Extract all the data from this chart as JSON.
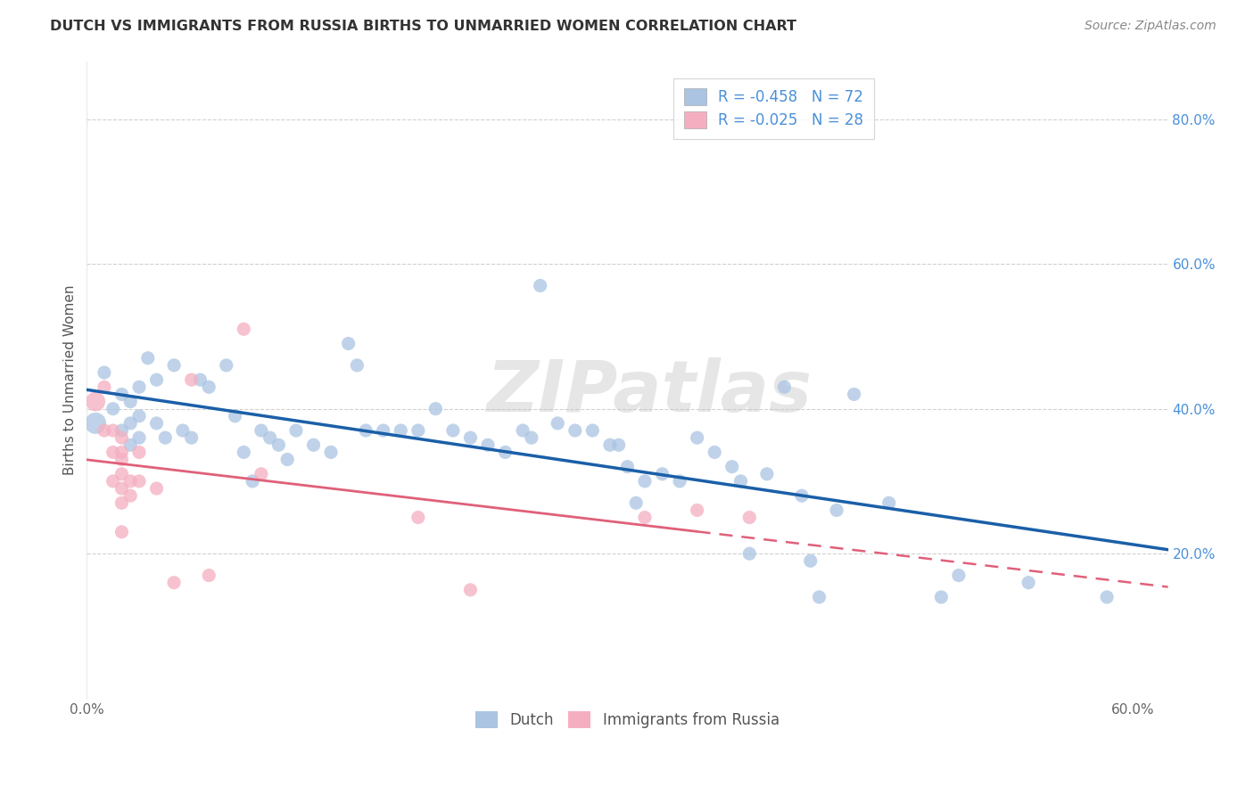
{
  "title": "DUTCH VS IMMIGRANTS FROM RUSSIA BIRTHS TO UNMARRIED WOMEN CORRELATION CHART",
  "source": "Source: ZipAtlas.com",
  "ylabel": "Births to Unmarried Women",
  "xlim": [
    0.0,
    0.62
  ],
  "ylim": [
    0.0,
    0.88
  ],
  "x_ticks": [
    0.0,
    0.1,
    0.2,
    0.3,
    0.4,
    0.5,
    0.6
  ],
  "y_ticks": [
    0.2,
    0.4,
    0.6,
    0.8
  ],
  "watermark": "ZIPatlas",
  "dutch_R": "-0.458",
  "dutch_N": "72",
  "russia_R": "-0.025",
  "russia_N": "28",
  "dutch_color": "#aac4e2",
  "russia_color": "#f5aec0",
  "dutch_line_color": "#1a5fa8",
  "russia_line_color": "#e0607a",
  "background_color": "#ffffff",
  "grid_color": "#cccccc",
  "dutch_points_x": [
    0.005,
    0.01,
    0.015,
    0.02,
    0.02,
    0.025,
    0.025,
    0.025,
    0.03,
    0.03,
    0.03,
    0.035,
    0.04,
    0.04,
    0.045,
    0.05,
    0.055,
    0.06,
    0.065,
    0.07,
    0.08,
    0.085,
    0.09,
    0.095,
    0.1,
    0.105,
    0.11,
    0.115,
    0.12,
    0.13,
    0.14,
    0.15,
    0.155,
    0.16,
    0.17,
    0.18,
    0.19,
    0.2,
    0.21,
    0.22,
    0.23,
    0.24,
    0.25,
    0.255,
    0.26,
    0.27,
    0.28,
    0.29,
    0.3,
    0.305,
    0.31,
    0.315,
    0.32,
    0.33,
    0.34,
    0.35,
    0.36,
    0.37,
    0.375,
    0.38,
    0.39,
    0.4,
    0.41,
    0.415,
    0.42,
    0.43,
    0.44,
    0.46,
    0.49,
    0.5,
    0.54,
    0.585
  ],
  "dutch_points_y": [
    0.38,
    0.45,
    0.4,
    0.42,
    0.37,
    0.41,
    0.38,
    0.35,
    0.43,
    0.39,
    0.36,
    0.47,
    0.44,
    0.38,
    0.36,
    0.46,
    0.37,
    0.36,
    0.44,
    0.43,
    0.46,
    0.39,
    0.34,
    0.3,
    0.37,
    0.36,
    0.35,
    0.33,
    0.37,
    0.35,
    0.34,
    0.49,
    0.46,
    0.37,
    0.37,
    0.37,
    0.37,
    0.4,
    0.37,
    0.36,
    0.35,
    0.34,
    0.37,
    0.36,
    0.57,
    0.38,
    0.37,
    0.37,
    0.35,
    0.35,
    0.32,
    0.27,
    0.3,
    0.31,
    0.3,
    0.36,
    0.34,
    0.32,
    0.3,
    0.2,
    0.31,
    0.43,
    0.28,
    0.19,
    0.14,
    0.26,
    0.42,
    0.27,
    0.14,
    0.17,
    0.16,
    0.14
  ],
  "russia_points_x": [
    0.005,
    0.01,
    0.01,
    0.015,
    0.015,
    0.015,
    0.02,
    0.02,
    0.02,
    0.02,
    0.02,
    0.02,
    0.02,
    0.025,
    0.025,
    0.03,
    0.03,
    0.04,
    0.05,
    0.06,
    0.07,
    0.09,
    0.1,
    0.19,
    0.22,
    0.32,
    0.35,
    0.38
  ],
  "russia_points_y": [
    0.41,
    0.43,
    0.37,
    0.37,
    0.34,
    0.3,
    0.36,
    0.34,
    0.33,
    0.31,
    0.29,
    0.27,
    0.23,
    0.3,
    0.28,
    0.34,
    0.3,
    0.29,
    0.16,
    0.44,
    0.17,
    0.51,
    0.31,
    0.25,
    0.15,
    0.25,
    0.26,
    0.25
  ],
  "dutch_sizes": [
    300,
    120,
    120,
    120,
    120,
    120,
    120,
    120,
    120,
    120,
    120,
    120,
    120,
    120,
    120,
    120,
    120,
    120,
    120,
    120,
    120,
    120,
    120,
    120,
    120,
    120,
    120,
    120,
    120,
    120,
    120,
    120,
    120,
    120,
    120,
    120,
    120,
    120,
    120,
    120,
    120,
    120,
    120,
    120,
    120,
    120,
    120,
    120,
    120,
    120,
    120,
    120,
    120,
    120,
    120,
    120,
    120,
    120,
    120,
    120,
    120,
    120,
    120,
    120,
    120,
    120,
    120,
    120,
    120,
    120,
    120,
    120
  ],
  "russia_sizes": [
    250,
    120,
    120,
    120,
    120,
    120,
    120,
    120,
    120,
    120,
    120,
    120,
    120,
    120,
    120,
    120,
    120,
    120,
    120,
    120,
    120,
    120,
    120,
    120,
    120,
    120,
    120,
    120
  ]
}
